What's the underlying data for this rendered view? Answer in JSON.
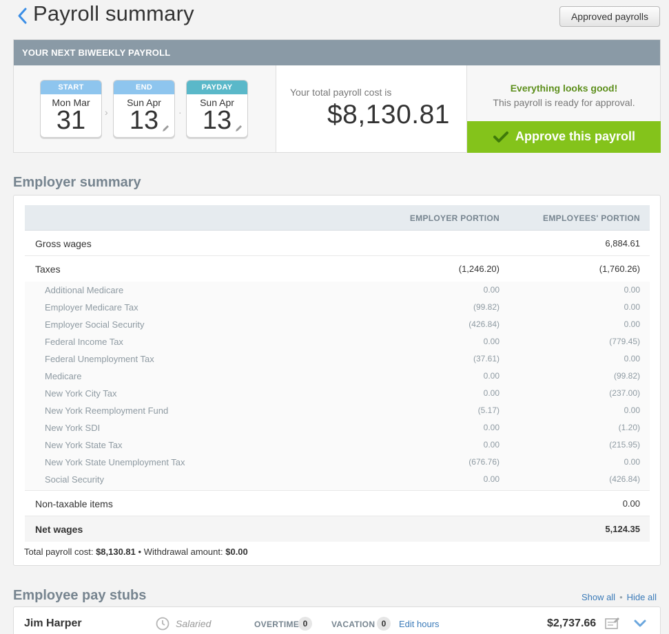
{
  "header": {
    "title": "Payroll summary",
    "approved_payrolls_label": "Approved payrolls"
  },
  "payroll": {
    "heading": "YOUR NEXT BIWEEKLY PAYROLL",
    "start": {
      "label": "START",
      "month": "Mon Mar",
      "day": "31",
      "color": "#8ec5ee"
    },
    "end": {
      "label": "END",
      "month": "Sun Apr",
      "day": "13",
      "color": "#8ec5ee"
    },
    "payday": {
      "label": "PAYDAY",
      "month": "Sun Apr",
      "day": "13",
      "color": "#5ab8c9"
    },
    "cost_label": "Your total payroll cost is",
    "cost_value": "$8,130.81",
    "good_message": "Everything looks good!",
    "ready_message": "This payroll is ready for approval.",
    "approve_label": "Approve this payroll",
    "accent_color": "#84c31b"
  },
  "employer_summary": {
    "title": "Employer summary",
    "col_employer": "EMPLOYER PORTION",
    "col_employees": "EMPLOYEES' PORTION",
    "gross": {
      "label": "Gross wages",
      "employer": "",
      "employees": "6,884.61"
    },
    "taxes": {
      "label": "Taxes",
      "employer": "(1,246.20)",
      "employees": "(1,760.26)"
    },
    "tax_items": [
      {
        "label": "Additional Medicare",
        "employer": "0.00",
        "employees": "0.00"
      },
      {
        "label": "Employer Medicare Tax",
        "employer": "(99.82)",
        "employees": "0.00"
      },
      {
        "label": "Employer Social Security",
        "employer": "(426.84)",
        "employees": "0.00"
      },
      {
        "label": "Federal Income Tax",
        "employer": "0.00",
        "employees": "(779.45)"
      },
      {
        "label": "Federal Unemployment Tax",
        "employer": "(37.61)",
        "employees": "0.00"
      },
      {
        "label": "Medicare",
        "employer": "0.00",
        "employees": "(99.82)"
      },
      {
        "label": "New York City Tax",
        "employer": "0.00",
        "employees": "(237.00)"
      },
      {
        "label": "New York Reemployment Fund",
        "employer": "(5.17)",
        "employees": "0.00"
      },
      {
        "label": "New York SDI",
        "employer": "0.00",
        "employees": "(1.20)"
      },
      {
        "label": "New York State Tax",
        "employer": "0.00",
        "employees": "(215.95)"
      },
      {
        "label": "New York State Unemployment Tax",
        "employer": "(676.76)",
        "employees": "0.00"
      },
      {
        "label": "Social Security",
        "employer": "0.00",
        "employees": "(426.84)"
      }
    ],
    "non_taxable": {
      "label": "Non-taxable items",
      "employer": "",
      "employees": "0.00"
    },
    "net": {
      "label": "Net wages",
      "employer": "",
      "employees": "5,124.35"
    },
    "total_cost_label": "Total payroll cost:",
    "total_cost_value": "$8,130.81",
    "separator": "•",
    "withdrawal_label": "Withdrawal amount:",
    "withdrawal_value": "$0.00"
  },
  "pay_stubs": {
    "title": "Employee pay stubs",
    "show_all": "Show all",
    "hide_all": "Hide all",
    "link_separator": "•",
    "employee": {
      "name": "Jim Harper",
      "type": "Salaried",
      "overtime_label": "OVERTIME",
      "overtime_value": "0",
      "vacation_label": "VACATION",
      "vacation_value": "0",
      "edit_hours": "Edit hours",
      "amount": "$2,737.66"
    }
  }
}
